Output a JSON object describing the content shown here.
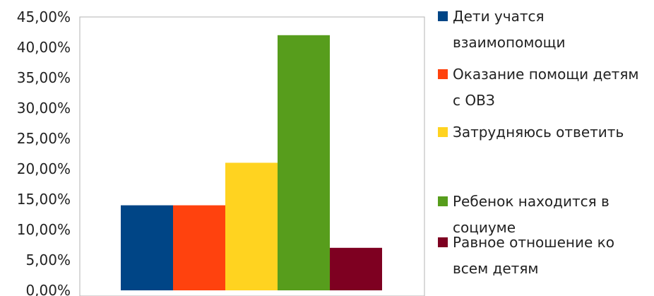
{
  "chart_data": {
    "type": "bar",
    "title": "",
    "xlabel": "",
    "ylabel": "",
    "ylim": [
      0,
      45
    ],
    "y_ticks": [
      "0,00%",
      "5,00%",
      "10,00%",
      "15,00%",
      "20,00%",
      "25,00%",
      "30,00%",
      "35,00%",
      "40,00%",
      "45,00%"
    ],
    "grid": false,
    "legend_position": "right",
    "series": [
      {
        "name": "Дети учатся взаимопомощи",
        "value": 14,
        "color": "#004586",
        "legend_lines": [
          "Дети учатся",
          "взаимопомощи"
        ]
      },
      {
        "name": "Оказание помощи детям с ОВЗ",
        "value": 14,
        "color": "#ff420e",
        "legend_lines": [
          "Оказание помощи детям",
          "с ОВЗ"
        ]
      },
      {
        "name": "Затрудняюсь ответить",
        "value": 21,
        "color": "#ffd320",
        "legend_lines": [
          "Затрудняюсь ответить"
        ]
      },
      {
        "name": "Ребенок находится в социуме",
        "value": 42,
        "color": "#579d1c",
        "legend_lines": [
          "Ребенок находится в",
          "социуме"
        ]
      },
      {
        "name": "Равное отношение ко всем детям",
        "value": 7,
        "color": "#7e0021",
        "legend_lines": [
          "Равное отношение ко",
          "всем детям"
        ]
      }
    ]
  }
}
